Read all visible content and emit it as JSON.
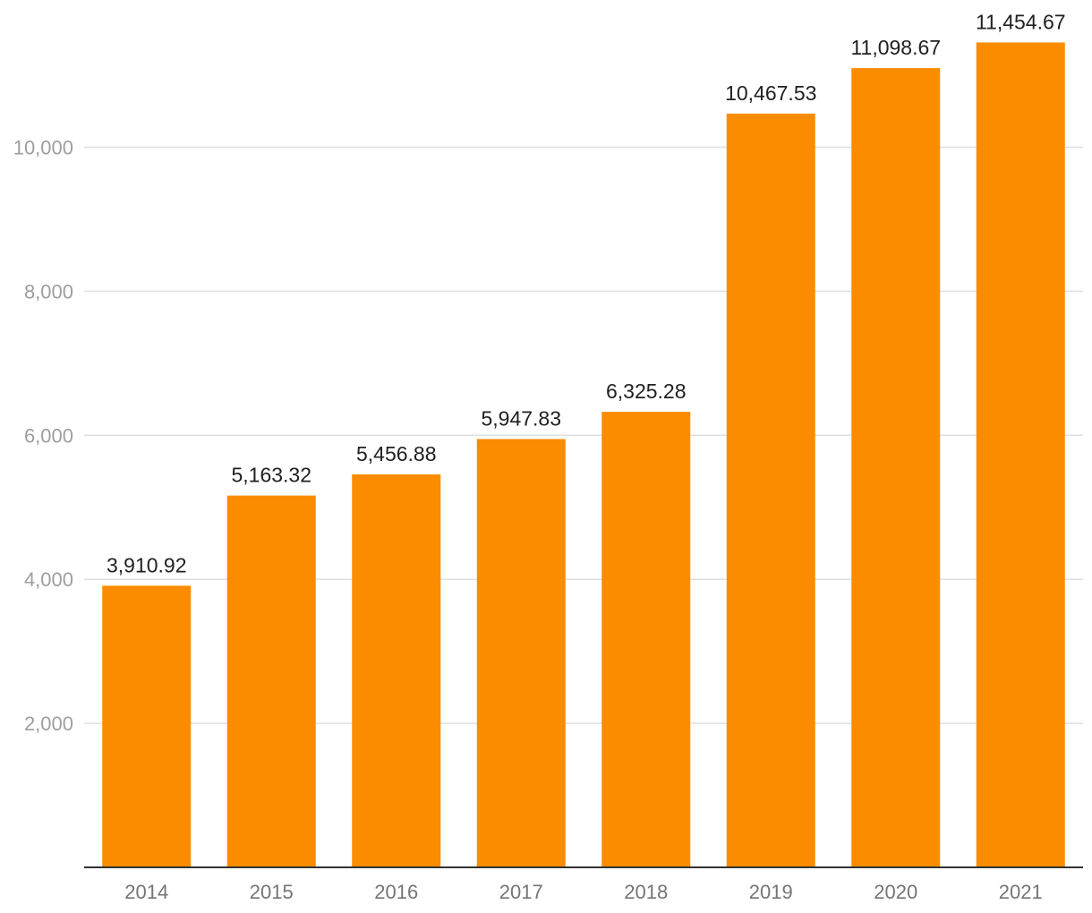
{
  "chart_data": {
    "type": "bar",
    "categories": [
      "2014",
      "2015",
      "2016",
      "2017",
      "2018",
      "2019",
      "2020",
      "2021"
    ],
    "values": [
      3910.92,
      5163.32,
      5456.88,
      5947.83,
      6325.28,
      10467.53,
      11098.67,
      11454.67
    ],
    "value_labels": [
      "3,910.92",
      "5,163.32",
      "5,456.88",
      "5,947.83",
      "6,325.28",
      "10,467.53",
      "11,098.67",
      "11,454.67"
    ],
    "y_ticks": [
      2000,
      4000,
      6000,
      8000,
      10000
    ],
    "y_tick_labels": [
      "2,000",
      "4,000",
      "6,000",
      "8,000",
      "10,000"
    ],
    "ylim": [
      0,
      12500
    ],
    "grid": true,
    "bar_color": "#fb8c00",
    "title": "",
    "xlabel": "",
    "ylabel": ""
  }
}
